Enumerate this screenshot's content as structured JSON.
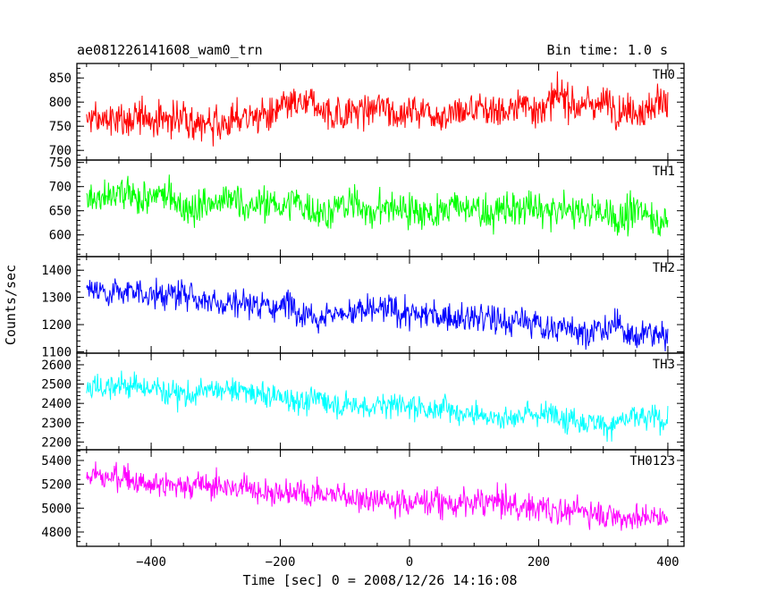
{
  "chart_data": {
    "type": "line",
    "title": "ae081226141608_wam0_trn",
    "subtitle": "Bin time: 1.0 s",
    "xlabel": "Time [sec] 0 = 2008/12/26 14:16:08",
    "ylabel": "Counts/sec",
    "xlim": [
      -515,
      425
    ],
    "x_range": [
      -500,
      400
    ],
    "x_ticks": [
      -400,
      -200,
      0,
      200,
      400
    ],
    "bin": 1.0,
    "grid": false,
    "panels": [
      {
        "name": "TH0",
        "color": "#ff0000",
        "ylim": [
          680,
          880
        ],
        "y_ticks": [
          700,
          750,
          800,
          850
        ],
        "trend_start": 760,
        "trend_end": 805,
        "noise_amplitude": 30
      },
      {
        "name": "TH1",
        "color": "#00ff00",
        "ylim": [
          555,
          755
        ],
        "y_ticks": [
          600,
          650,
          700,
          750
        ],
        "trend_start": 670,
        "trend_end": 640,
        "noise_amplitude": 30
      },
      {
        "name": "TH2",
        "color": "#0000ff",
        "ylim": [
          1095,
          1450
        ],
        "y_ticks": [
          1100,
          1200,
          1300,
          1400
        ],
        "trend_start": 1335,
        "trend_end": 1160,
        "noise_amplitude": 45
      },
      {
        "name": "TH3",
        "color": "#00ffff",
        "ylim": [
          2160,
          2660
        ],
        "y_ticks": [
          2200,
          2300,
          2400,
          2500,
          2600
        ],
        "trend_start": 2500,
        "trend_end": 2300,
        "noise_amplitude": 55
      },
      {
        "name": "TH0123",
        "color": "#ff00ff",
        "ylim": [
          4680,
          5490
        ],
        "y_ticks": [
          4800,
          5000,
          5200,
          5400
        ],
        "trend_start": 5270,
        "trend_end": 4930,
        "noise_amplitude": 95
      }
    ]
  }
}
